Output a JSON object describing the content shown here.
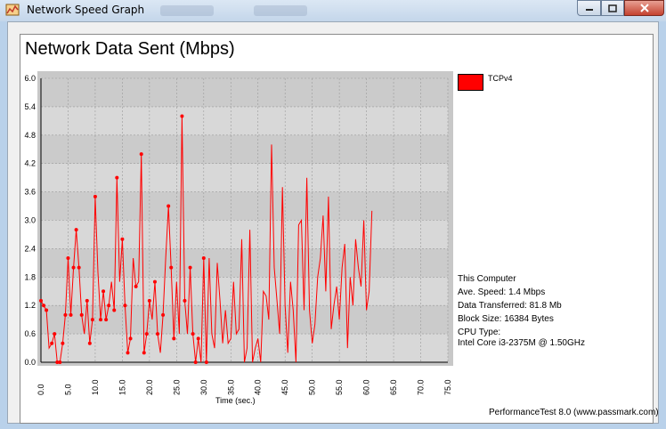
{
  "window": {
    "title": "Network Speed Graph",
    "icon": "app-graph-icon",
    "controls": [
      "minimize-icon",
      "maximize-icon",
      "close-icon"
    ]
  },
  "legend": {
    "label": "TCPv4",
    "color": "#ff0000"
  },
  "info": {
    "computer": "This Computer",
    "ave_speed": "Ave. Speed: 1.4 Mbps",
    "data_transferred": "Data Transferred: 81.8 Mb",
    "block_size": "Block Size: 16384 Bytes",
    "cpu_type_label": "CPU Type:",
    "cpu_name": "Intel Core i3-2375M @ 1.50GHz"
  },
  "footer": "PerformanceTest 8.0 (www.passmark.com)",
  "chart_data": {
    "type": "line",
    "title": "Network Data Sent (Mbps)",
    "xlabel": "Time (sec.)",
    "ylabel": "",
    "xlim": [
      0,
      75
    ],
    "ylim": [
      0,
      6
    ],
    "xticks": [
      "0.0",
      "5.0",
      "10.0",
      "15.0",
      "20.0",
      "25.0",
      "30.0",
      "35.0",
      "40.0",
      "45.0",
      "50.0",
      "55.0",
      "60.0",
      "65.0",
      "70.0",
      "75.0"
    ],
    "yticks": [
      "0.0",
      "0.6",
      "1.2",
      "1.8",
      "2.4",
      "3.0",
      "3.6",
      "4.2",
      "4.8",
      "5.4",
      "6.0"
    ],
    "grid": true,
    "legend_position": "top-right",
    "series": [
      {
        "name": "TCPv4",
        "color": "#ff0000",
        "x": [
          0,
          0.5,
          1,
          1.5,
          2,
          2.5,
          3,
          3.5,
          4,
          4.5,
          5,
          5.5,
          6,
          6.5,
          7,
          7.5,
          8,
          8.5,
          9,
          9.5,
          10,
          10.5,
          11,
          11.5,
          12,
          12.5,
          13,
          13.5,
          14,
          14.5,
          15,
          15.5,
          16,
          16.5,
          17,
          17.5,
          18,
          18.5,
          19,
          19.5,
          20,
          20.5,
          21,
          21.5,
          22,
          22.5,
          23,
          23.5,
          24,
          24.5,
          25,
          25.5,
          26,
          26.5,
          27,
          27.5,
          28,
          28.5,
          29,
          29.5,
          30,
          30.5,
          31,
          31.5,
          32,
          32.5,
          33,
          33.5,
          34,
          34.5,
          35,
          35.5,
          36,
          36.5,
          37,
          37.5,
          38,
          38.5,
          39,
          39.5,
          40,
          40.5,
          41,
          41.5,
          42,
          42.5,
          43,
          43.5,
          44,
          44.5,
          45,
          45.5,
          46,
          46.5,
          47,
          47.5,
          48,
          48.5,
          49,
          49.5,
          50,
          50.5,
          51,
          51.5,
          52,
          52.5,
          53,
          53.5,
          54,
          54.5,
          55,
          55.5,
          56,
          56.5,
          57,
          57.5,
          58,
          58.5,
          59,
          59.5,
          60,
          60.5,
          61
        ],
        "values": [
          1.3,
          1.2,
          1.1,
          0.3,
          0.4,
          0.6,
          0.0,
          0.0,
          0.4,
          1.0,
          2.2,
          1.0,
          2.0,
          2.8,
          2.0,
          1.0,
          0.6,
          1.3,
          0.4,
          0.9,
          3.5,
          1.9,
          0.9,
          1.5,
          0.9,
          1.2,
          1.7,
          1.1,
          3.9,
          1.7,
          2.6,
          1.2,
          0.2,
          0.5,
          2.2,
          1.6,
          1.7,
          4.4,
          0.2,
          0.6,
          1.3,
          0.9,
          1.7,
          0.6,
          0.2,
          1.0,
          2.2,
          3.3,
          2.0,
          0.5,
          1.7,
          0.6,
          5.2,
          1.3,
          0.6,
          2.0,
          0.6,
          0.0,
          0.5,
          0.0,
          2.2,
          0.0,
          2.2,
          0.6,
          0.3,
          2.1,
          1.3,
          0.4,
          1.1,
          0.4,
          0.5,
          1.7,
          0.6,
          0.7,
          2.6,
          0.0,
          0.3,
          2.8,
          0.0,
          0.3,
          0.5,
          0.0,
          1.5,
          1.4,
          0.9,
          4.6,
          2.0,
          1.3,
          0.6,
          3.7,
          1.2,
          0.2,
          1.7,
          1.1,
          0.0,
          2.9,
          3.0,
          1.1,
          3.9,
          1.1,
          0.4,
          0.8,
          1.8,
          2.2,
          3.1,
          1.5,
          3.5,
          0.7,
          1.2,
          1.6,
          0.9,
          2.0,
          2.5,
          0.3,
          1.8,
          1.2,
          2.6,
          2.0,
          1.6,
          3.0,
          1.1,
          1.5,
          3.2
        ]
      }
    ],
    "markers_at": [
      0,
      1,
      2,
      4,
      5,
      6,
      7,
      8,
      9,
      10,
      11,
      12,
      13,
      14,
      15,
      17,
      18,
      19,
      20,
      22,
      23,
      24,
      25,
      27,
      28,
      30,
      31,
      32,
      33,
      35,
      37,
      38,
      39,
      40,
      42,
      43,
      45,
      47,
      48,
      49,
      52,
      53,
      55,
      56,
      57,
      58,
      60,
      61
    ]
  }
}
